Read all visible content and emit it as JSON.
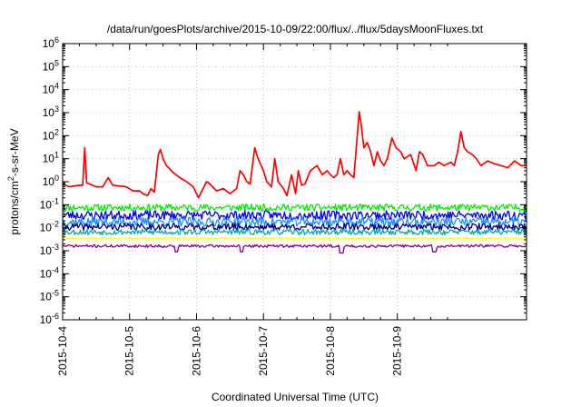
{
  "chart_data": {
    "type": "line",
    "title": "/data/run/goesPlots/archive/2015-10-09/22:00/flux/../flux/5daysMoonFluxes.txt",
    "xlabel": "Coordinated Universal Time (UTC)",
    "ylabel_parts": {
      "base": "protons/cm",
      "sup": "2",
      "rest": "-s-sr-MeV"
    },
    "x_tick_labels": [
      "2015-10-4",
      "2015-10-5",
      "2015-10-6",
      "2015-10-7",
      "2015-10-8",
      "2015-10-9"
    ],
    "x_range_days": [
      0,
      6.93
    ],
    "y_scale": "log",
    "y_range_exponents": [
      -6,
      6
    ],
    "y_tick_exponents": [
      -6,
      -5,
      -4,
      -3,
      -2,
      -1,
      0,
      1,
      2,
      3,
      4,
      5,
      6
    ],
    "grid": true,
    "legend": "none",
    "series": [
      {
        "color": "#ff0000",
        "points": [
          [
            0,
            0.8
          ],
          [
            0.1,
            0.6
          ],
          [
            0.25,
            0.7
          ],
          [
            0.3,
            0.7
          ],
          [
            0.33,
            30
          ],
          [
            0.36,
            0.9
          ],
          [
            0.5,
            0.6
          ],
          [
            0.6,
            0.6
          ],
          [
            0.68,
            1.5
          ],
          [
            0.75,
            0.7
          ],
          [
            0.95,
            0.6
          ],
          [
            1.05,
            0.4
          ],
          [
            1.15,
            0.4
          ],
          [
            1.2,
            0.3
          ],
          [
            1.27,
            0.25
          ],
          [
            1.32,
            0.5
          ],
          [
            1.37,
            0.35
          ],
          [
            1.43,
            15
          ],
          [
            1.46,
            25
          ],
          [
            1.5,
            10
          ],
          [
            1.55,
            5
          ],
          [
            1.65,
            2.5
          ],
          [
            1.75,
            1.5
          ],
          [
            1.85,
            1.0
          ],
          [
            1.95,
            0.6
          ],
          [
            2.0,
            0.3
          ],
          [
            2.03,
            0.2
          ],
          [
            2.08,
            0.4
          ],
          [
            2.15,
            1.0
          ],
          [
            2.2,
            0.8
          ],
          [
            2.3,
            0.4
          ],
          [
            2.4,
            0.5
          ],
          [
            2.5,
            0.3
          ],
          [
            2.6,
            0.5
          ],
          [
            2.65,
            3
          ],
          [
            2.7,
            2
          ],
          [
            2.75,
            1.0
          ],
          [
            2.8,
            0.8
          ],
          [
            2.87,
            30
          ],
          [
            2.92,
            10
          ],
          [
            3.0,
            3
          ],
          [
            3.05,
            1.0
          ],
          [
            3.12,
            0.6
          ],
          [
            3.17,
            10
          ],
          [
            3.22,
            1.0
          ],
          [
            3.3,
            0.5
          ],
          [
            3.35,
            0.25
          ],
          [
            3.42,
            2
          ],
          [
            3.48,
            0.3
          ],
          [
            3.52,
            3
          ],
          [
            3.57,
            0.7
          ],
          [
            3.62,
            0.8
          ],
          [
            3.7,
            3
          ],
          [
            3.8,
            5
          ],
          [
            3.88,
            2
          ],
          [
            3.95,
            3
          ],
          [
            4.0,
            2
          ],
          [
            4.05,
            1.5
          ],
          [
            4.1,
            2
          ],
          [
            4.15,
            10
          ],
          [
            4.2,
            2
          ],
          [
            4.25,
            3
          ],
          [
            4.3,
            2
          ],
          [
            4.35,
            1.5
          ],
          [
            4.43,
            1100
          ],
          [
            4.46,
            300
          ],
          [
            4.5,
            30
          ],
          [
            4.55,
            50
          ],
          [
            4.6,
            20
          ],
          [
            4.65,
            5
          ],
          [
            4.7,
            20
          ],
          [
            4.75,
            8
          ],
          [
            4.8,
            5
          ],
          [
            4.85,
            10
          ],
          [
            4.92,
            80
          ],
          [
            4.98,
            30
          ],
          [
            5.05,
            20
          ],
          [
            5.1,
            10
          ],
          [
            5.2,
            15
          ],
          [
            5.28,
            3
          ],
          [
            5.33,
            20
          ],
          [
            5.38,
            15
          ],
          [
            5.45,
            5
          ],
          [
            5.55,
            5
          ],
          [
            5.62,
            7
          ],
          [
            5.7,
            5
          ],
          [
            5.8,
            7
          ],
          [
            5.85,
            5
          ],
          [
            5.9,
            20
          ],
          [
            5.95,
            150
          ],
          [
            6.0,
            30
          ],
          [
            6.05,
            20
          ],
          [
            6.12,
            15
          ],
          [
            6.18,
            10
          ],
          [
            6.25,
            5
          ],
          [
            6.35,
            8
          ],
          [
            6.45,
            6
          ],
          [
            6.55,
            5
          ],
          [
            6.65,
            4
          ],
          [
            6.75,
            8
          ],
          [
            6.85,
            5
          ],
          [
            6.93,
            5
          ]
        ]
      },
      {
        "color": "#00ee00",
        "center": 0.075,
        "spread": 0.15,
        "seed": 11
      },
      {
        "color": "#0000ff",
        "center": 0.035,
        "spread": 0.2,
        "seed": 23
      },
      {
        "color": "#1e90ff",
        "center": 0.018,
        "spread": 0.2,
        "seed": 37
      },
      {
        "color": "#00008b",
        "center": 0.011,
        "spread": 0.15,
        "seed": 41
      },
      {
        "color": "#00aaaa",
        "center": 0.0065,
        "spread": 0.12,
        "seed": 53
      },
      {
        "color": "#ffff00",
        "center": 0.0035,
        "spread": 0.02,
        "seed": 61
      },
      {
        "color": "#8b008b",
        "center": 0.0016,
        "spread": 0.06,
        "seed": 71,
        "dips": [
          [
            1.7,
            0.0009
          ],
          [
            2.67,
            0.0009
          ],
          [
            4.17,
            0.0008
          ],
          [
            5.55,
            0.0009
          ]
        ]
      }
    ]
  }
}
